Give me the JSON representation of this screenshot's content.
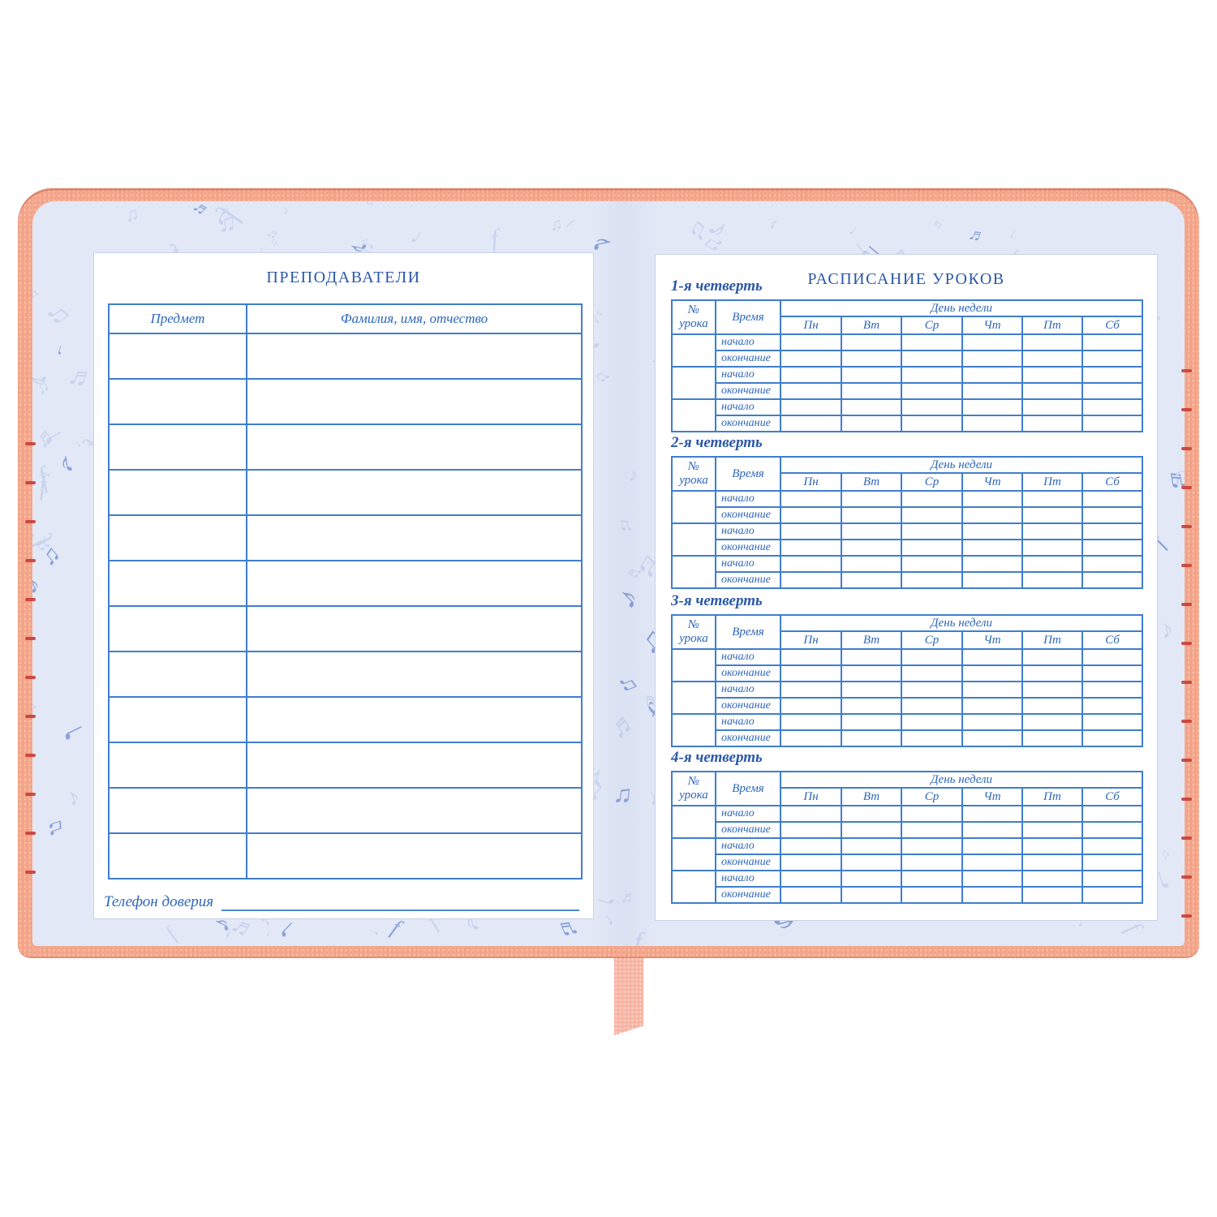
{
  "page_type": "school-diary-open-spread",
  "left_page": {
    "title": "ПРЕПОДАВАТЕЛИ",
    "teachers_table": {
      "columns": [
        "Предмет",
        "Фамилия, имя, отчество"
      ],
      "empty_rows": 12
    },
    "phone_label": "Телефон доверия",
    "phone_value": ""
  },
  "right_page": {
    "title": "РАСПИСАНИЕ УРОКОВ",
    "quarters": [
      {
        "label": "1-я четверть"
      },
      {
        "label": "2-я четверть"
      },
      {
        "label": "3-я четверть"
      },
      {
        "label": "4-я четверть"
      }
    ],
    "schedule_table": {
      "lesson_col": "№ урока",
      "time_col": "Время",
      "days_group": "День недели",
      "days": [
        "Пн",
        "Вт",
        "Ср",
        "Чт",
        "Пт",
        "Сб"
      ],
      "time_rows": [
        "начало",
        "окончание"
      ],
      "lesson_groups": 3
    }
  },
  "background": {
    "pattern_name": "music-notes",
    "pattern_glyphs": [
      "♪",
      "♫",
      "♬",
      "♩",
      "f"
    ]
  },
  "colors": {
    "cover": "#f6a88d",
    "stitch": "#c8403a",
    "page_bg": "#e2e8f6",
    "note_light": "#c9d4ee",
    "note_dark": "#8aa2da",
    "table_border": "#3f7ecd",
    "title_text": "#2a57a9",
    "label_text": "#2e66bb",
    "ribbon": "#f8b3a3"
  }
}
